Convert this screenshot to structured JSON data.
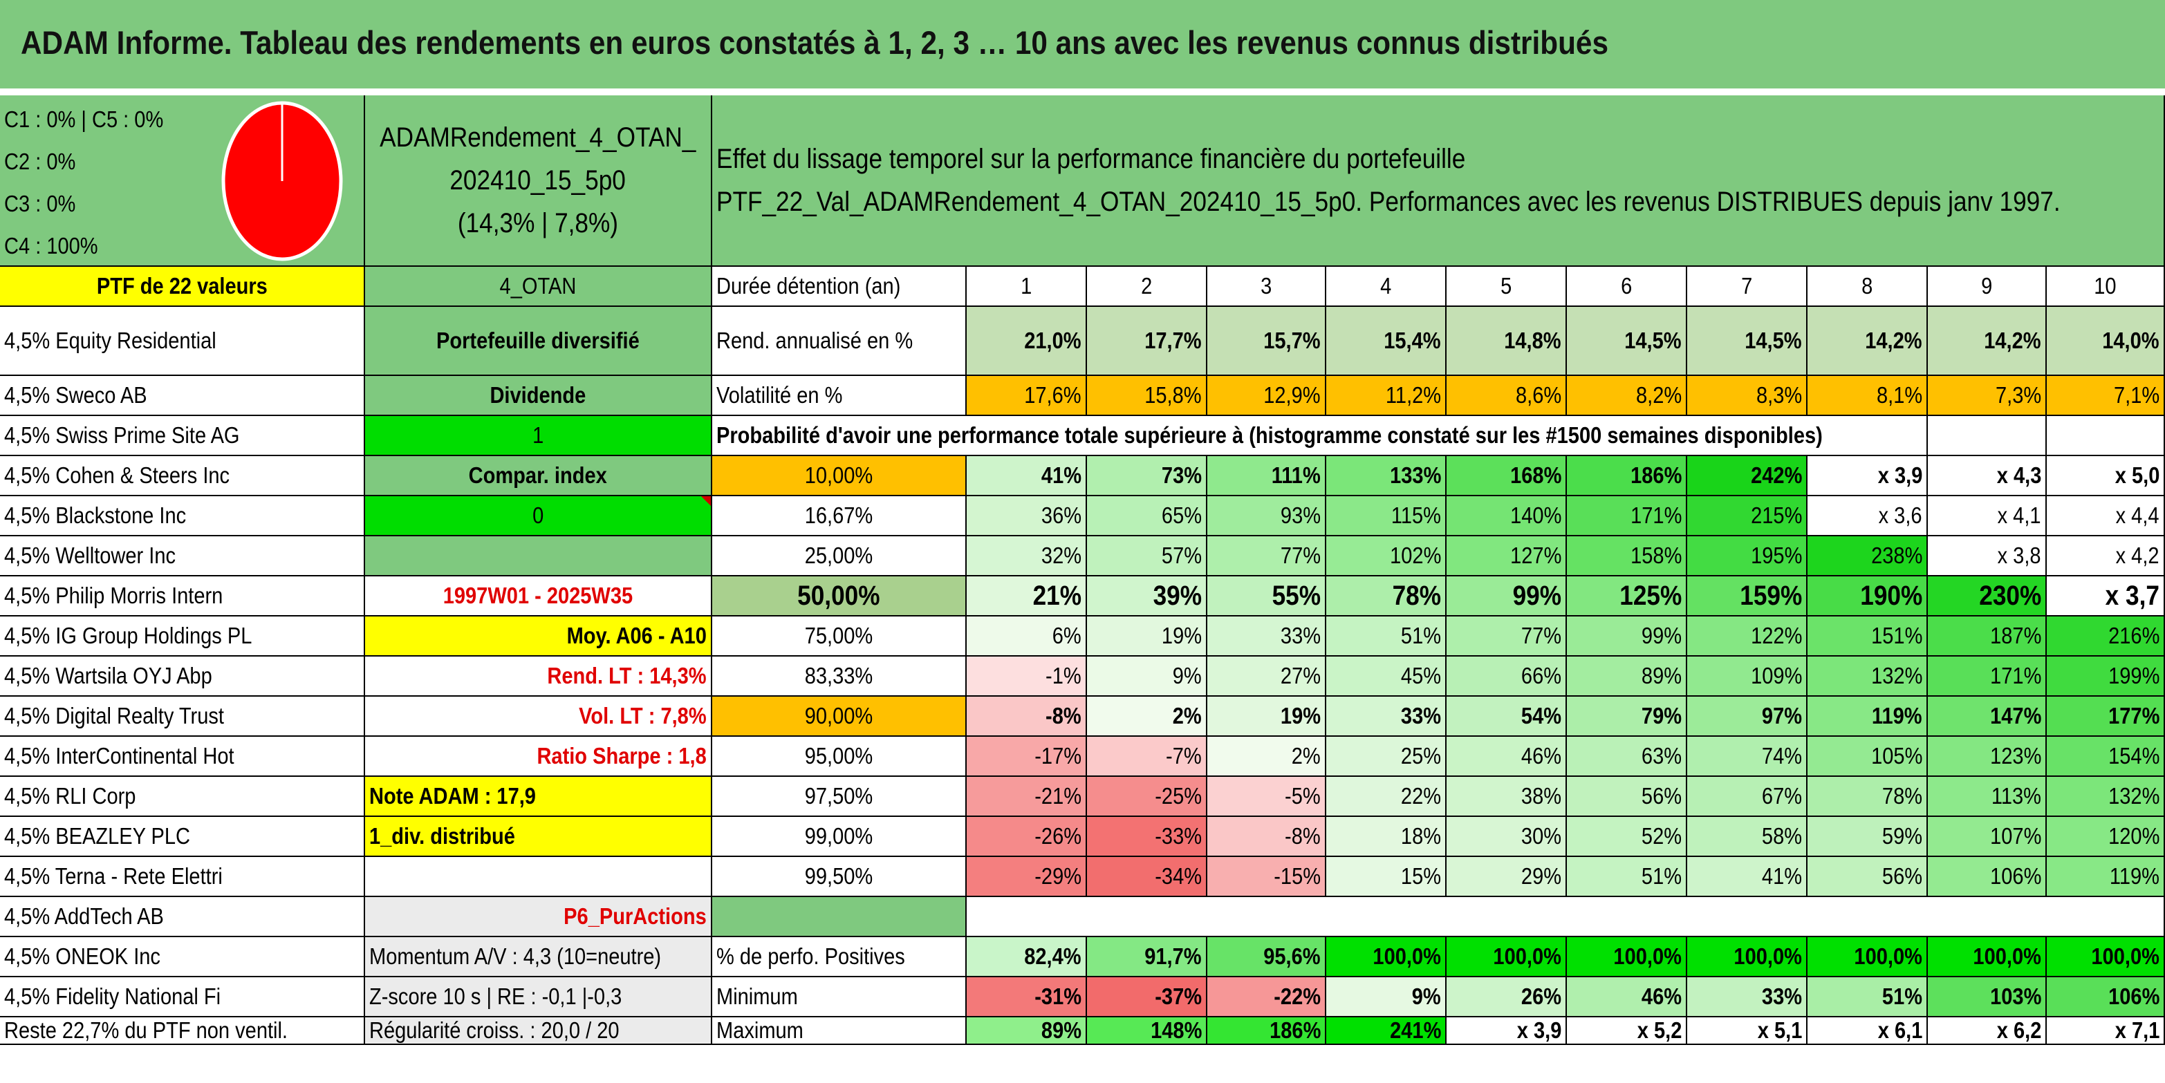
{
  "title": "ADAM Informe. Tableau des rendements en euros constatés à 1, 2, 3 … 10 ans avec les revenus connus distribués",
  "allocation": {
    "lines": [
      "C1 : 0% | C5 : 0%",
      "C2 : 0%",
      "C3 : 0%",
      "C4 : 100%"
    ],
    "pie_color": "#ff0000"
  },
  "portfolio": {
    "name_line1": "ADAMRendement_4_OTAN_",
    "name_line2": "202410_15_5p0",
    "name_line3": "(14,3% | 7,8%)",
    "ptf_count": "PTF de 22 valeurs",
    "code": "4_OTAN"
  },
  "description": {
    "line1": "Effet du lissage temporel sur la performance financière du portefeuille",
    "line2": "PTF_22_Val_ADAMRendement_4_OTAN_202410_15_5p0. Performances avec les revenus DISTRIBUES depuis janv 1997."
  },
  "holdings": [
    "4,5% Equity Residential",
    "4,5% Sweco AB",
    "4,5% Swiss Prime Site AG",
    "4,5% Cohen & Steers Inc",
    "4,5% Blackstone Inc",
    "4,5% Welltower Inc",
    "4,5% Philip Morris Intern",
    "4,5% IG Group Holdings PL",
    "4,5% Wartsila OYJ Abp",
    "4,5% Digital Realty Trust",
    "4,5% InterContinental Hot",
    "4,5% RLI Corp",
    "4,5% BEAZLEY PLC",
    "4,5% Terna - Rete Elettri",
    "4,5% AddTech AB",
    "4,5% ONEOK Inc",
    "4,5% Fidelity National Fi",
    "Reste 22,7% du PTF non ventil."
  ],
  "info": {
    "type": "Portefeuille diversifié",
    "div": "Dividende",
    "flag1": "1",
    "compar": "Compar. index",
    "flag0": "0",
    "period": "1997W01 - 2025W35",
    "moy": "Moy. A06 - A10",
    "rend_lt": "Rend. LT : 14,3%",
    "vol_lt": "Vol. LT : 7,8%",
    "sharpe": "Ratio Sharpe : 1,8",
    "note": "Note ADAM : 17,9",
    "div_count": "1_div. distribué",
    "p6": "P6_PurActions",
    "momentum": "Momentum A/V : 4,3 (10=neutre)",
    "zscore": "Z-score 10 s | RE : -0,1 |-0,3",
    "regul": "Régularité croiss. : 20,0 / 20"
  },
  "stats": {
    "duree_label": "Durée détention (an)",
    "years": [
      "1",
      "2",
      "3",
      "4",
      "5",
      "6",
      "7",
      "8",
      "9",
      "10"
    ],
    "rend_label": "Rend. annualisé en %",
    "rend": [
      "21,0%",
      "17,7%",
      "15,7%",
      "15,4%",
      "14,8%",
      "14,5%",
      "14,5%",
      "14,2%",
      "14,2%",
      "14,0%"
    ],
    "vol_label": "Volatilité en %",
    "vol": [
      "17,6%",
      "15,8%",
      "12,9%",
      "11,2%",
      "8,6%",
      "8,2%",
      "8,3%",
      "8,1%",
      "7,3%",
      "7,1%"
    ],
    "proba_label": "Probabilité d'avoir une performance totale supérieure à (histogramme constaté sur les #1500 semaines disponibles)"
  },
  "prob_table": [
    {
      "p": "10,00%",
      "v": [
        "41%",
        "73%",
        "111%",
        "133%",
        "168%",
        "186%",
        "242%",
        "x 3,9",
        "x 4,3",
        "x 5,0"
      ]
    },
    {
      "p": "16,67%",
      "v": [
        "36%",
        "65%",
        "93%",
        "115%",
        "140%",
        "171%",
        "215%",
        "x 3,6",
        "x 4,1",
        "x 4,4"
      ]
    },
    {
      "p": "25,00%",
      "v": [
        "32%",
        "57%",
        "77%",
        "102%",
        "127%",
        "158%",
        "195%",
        "238%",
        "x 3,8",
        "x 4,2"
      ]
    },
    {
      "p": "50,00%",
      "v": [
        "21%",
        "39%",
        "55%",
        "78%",
        "99%",
        "125%",
        "159%",
        "190%",
        "230%",
        "x 3,7"
      ]
    },
    {
      "p": "75,00%",
      "v": [
        "6%",
        "19%",
        "33%",
        "51%",
        "77%",
        "99%",
        "122%",
        "151%",
        "187%",
        "216%"
      ]
    },
    {
      "p": "83,33%",
      "v": [
        "-1%",
        "9%",
        "27%",
        "45%",
        "66%",
        "89%",
        "109%",
        "132%",
        "171%",
        "199%"
      ]
    },
    {
      "p": "90,00%",
      "v": [
        "-8%",
        "2%",
        "19%",
        "33%",
        "54%",
        "79%",
        "97%",
        "119%",
        "147%",
        "177%"
      ]
    },
    {
      "p": "95,00%",
      "v": [
        "-17%",
        "-7%",
        "2%",
        "25%",
        "46%",
        "63%",
        "74%",
        "105%",
        "123%",
        "154%"
      ]
    },
    {
      "p": "97,50%",
      "v": [
        "-21%",
        "-25%",
        "-5%",
        "22%",
        "38%",
        "56%",
        "67%",
        "78%",
        "113%",
        "132%"
      ]
    },
    {
      "p": "99,00%",
      "v": [
        "-26%",
        "-33%",
        "-8%",
        "18%",
        "30%",
        "52%",
        "58%",
        "59%",
        "107%",
        "120%"
      ]
    },
    {
      "p": "99,50%",
      "v": [
        "-29%",
        "-34%",
        "-15%",
        "15%",
        "29%",
        "51%",
        "41%",
        "56%",
        "106%",
        "119%"
      ]
    }
  ],
  "summary": {
    "pos_label": "% de perfo. Positives",
    "pos": [
      "82,4%",
      "91,7%",
      "95,6%",
      "100,0%",
      "100,0%",
      "100,0%",
      "100,0%",
      "100,0%",
      "100,0%",
      "100,0%"
    ],
    "min_label": "Minimum",
    "min": [
      "-31%",
      "-37%",
      "-22%",
      "9%",
      "26%",
      "46%",
      "33%",
      "51%",
      "103%",
      "106%"
    ],
    "max_label": "Maximum",
    "max": [
      "89%",
      "148%",
      "186%",
      "241%",
      "x 3,9",
      "x 5,2",
      "x 5,1",
      "x 6,1",
      "x 6,2",
      "x 7,1"
    ]
  },
  "colors": {
    "banner": "#7fc97f",
    "midgreen": "#7fc97f",
    "yellow": "#ffff00",
    "brightgreen": "#00dd00",
    "orange": "#ffc000",
    "rend_bg": "#c5e0b4",
    "red_text": "#e00000"
  }
}
